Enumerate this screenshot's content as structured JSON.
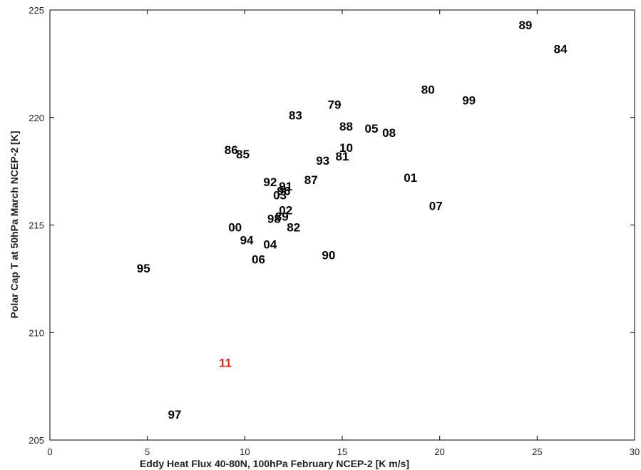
{
  "chart_data": {
    "type": "scatter",
    "title": "",
    "xlabel": "Eddy Heat Flux 40-80N, 100hPa February  NCEP-2  [K m/s]",
    "ylabel": "Polar Cap T at 50hPa March  NCEP-2  [K]",
    "xlim": [
      0,
      30
    ],
    "ylim": [
      205,
      225
    ],
    "xticks": [
      0,
      5,
      10,
      15,
      20,
      25,
      30
    ],
    "yticks": [
      205,
      210,
      215,
      220,
      225
    ],
    "grid": false,
    "default_color": "#000000",
    "highlight_color": "#e8251a",
    "points": [
      {
        "label": "89",
        "x": 24.4,
        "y": 224.3
      },
      {
        "label": "84",
        "x": 26.2,
        "y": 223.2
      },
      {
        "label": "80",
        "x": 19.4,
        "y": 221.3
      },
      {
        "label": "99",
        "x": 21.5,
        "y": 220.8
      },
      {
        "label": "79",
        "x": 14.6,
        "y": 220.6
      },
      {
        "label": "83",
        "x": 12.6,
        "y": 220.1
      },
      {
        "label": "88",
        "x": 15.2,
        "y": 219.6
      },
      {
        "label": "05",
        "x": 16.5,
        "y": 219.5
      },
      {
        "label": "08",
        "x": 17.4,
        "y": 219.3
      },
      {
        "label": "10",
        "x": 15.2,
        "y": 218.6
      },
      {
        "label": "86",
        "x": 9.3,
        "y": 218.5
      },
      {
        "label": "85",
        "x": 9.9,
        "y": 218.3
      },
      {
        "label": "81",
        "x": 15.0,
        "y": 218.2
      },
      {
        "label": "93",
        "x": 14.0,
        "y": 218.0
      },
      {
        "label": "01",
        "x": 18.5,
        "y": 217.2
      },
      {
        "label": "87",
        "x": 13.4,
        "y": 217.1
      },
      {
        "label": "92",
        "x": 11.3,
        "y": 217.0
      },
      {
        "label": "91",
        "x": 12.1,
        "y": 216.8
      },
      {
        "label": "96",
        "x": 12.0,
        "y": 216.6
      },
      {
        "label": "03",
        "x": 11.8,
        "y": 216.4
      },
      {
        "label": "07",
        "x": 19.8,
        "y": 215.9
      },
      {
        "label": "02",
        "x": 12.1,
        "y": 215.7
      },
      {
        "label": "89b",
        "x": 11.9,
        "y": 215.4
      },
      {
        "label": "98",
        "x": 11.5,
        "y": 215.3
      },
      {
        "label": "82",
        "x": 12.5,
        "y": 214.9
      },
      {
        "label": "00",
        "x": 9.5,
        "y": 214.9
      },
      {
        "label": "94",
        "x": 10.1,
        "y": 214.3
      },
      {
        "label": "04",
        "x": 11.3,
        "y": 214.1
      },
      {
        "label": "90",
        "x": 14.3,
        "y": 213.6
      },
      {
        "label": "06",
        "x": 10.7,
        "y": 213.4
      },
      {
        "label": "95",
        "x": 4.8,
        "y": 213.0
      },
      {
        "label": "11",
        "x": 9.0,
        "y": 208.6,
        "highlight": true
      },
      {
        "label": "97",
        "x": 6.4,
        "y": 206.2
      }
    ]
  }
}
